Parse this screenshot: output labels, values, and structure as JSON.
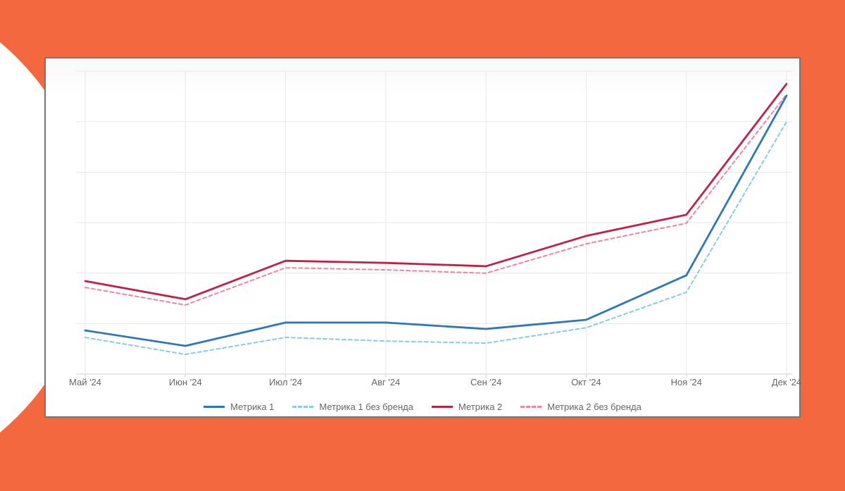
{
  "background": {
    "color": "#F4683F",
    "blob_color": "#FFFFFF"
  },
  "card": {
    "border_color": "#757575",
    "background_color": "#FFFFFF"
  },
  "chart_data": {
    "type": "line",
    "title": "",
    "xlabel": "",
    "ylabel": "",
    "categories": [
      "Май '24",
      "Июн '24",
      "Июл '24",
      "Авг '24",
      "Сен '24",
      "Окт '24",
      "Ноя '24",
      "Дек '24"
    ],
    "series": [
      {
        "name": "Метрика 1",
        "color": "#2C79B6",
        "dash": false,
        "values": [
          14.4,
          9.3,
          17.0,
          17.0,
          14.9,
          17.9,
          32.6,
          91.9
        ]
      },
      {
        "name": "Метрика 1 без бренда",
        "color": "#85CDE6",
        "dash": true,
        "values": [
          12.1,
          6.5,
          12.1,
          10.9,
          10.2,
          15.3,
          27.0,
          83.3
        ]
      },
      {
        "name": "Метрика 2",
        "color": "#C12148",
        "dash": false,
        "values": [
          30.7,
          24.7,
          37.4,
          36.7,
          35.6,
          45.6,
          52.6,
          95.8
        ]
      },
      {
        "name": "Метрика 2 без бренда",
        "color": "#F4849C",
        "dash": true,
        "values": [
          28.6,
          22.8,
          35.1,
          34.4,
          33.3,
          43.0,
          49.8,
          92.3
        ]
      }
    ],
    "y_unit": "percent of plot height (no y-axis tick labels shown)",
    "ylim": [
      0,
      100
    ],
    "grid": true,
    "grid_color": "#E8E8E8",
    "axis_color": "#CFCFCF",
    "legend_position": "bottom"
  }
}
